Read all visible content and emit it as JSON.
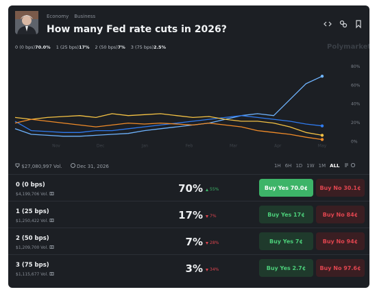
{
  "header": {
    "breadcrumb": [
      "Economy",
      "Business"
    ],
    "title": "How many Fed rate cuts in 2026?"
  },
  "brand": "Polymarket",
  "chart_data": {
    "type": "line",
    "series": [
      {
        "name": "0 (0 bps)",
        "current": "70.0%",
        "color": "#6fb4ff",
        "values": [
          14,
          8,
          7,
          6,
          6,
          7,
          8,
          9,
          12,
          14,
          16,
          18,
          20,
          24,
          28,
          30,
          28,
          45,
          62,
          70
        ]
      },
      {
        "name": "1 (25 bps)",
        "current": "17%",
        "color": "#2f7bf0",
        "values": [
          22,
          12,
          11,
          10,
          10,
          12,
          12,
          14,
          16,
          18,
          20,
          22,
          24,
          26,
          28,
          26,
          24,
          22,
          19,
          17
        ]
      },
      {
        "name": "2 (50 bps)",
        "current": "7%",
        "color": "#f6c344",
        "values": [
          26,
          24,
          26,
          27,
          28,
          26,
          30,
          28,
          29,
          30,
          28,
          26,
          27,
          24,
          22,
          22,
          20,
          16,
          10,
          7
        ]
      },
      {
        "name": "3 (75 bps)",
        "current": "2.5%",
        "color": "#f28c28",
        "values": [
          20,
          24,
          22,
          20,
          18,
          16,
          18,
          20,
          19,
          20,
          19,
          18,
          20,
          18,
          16,
          12,
          10,
          8,
          5,
          2.5
        ]
      }
    ],
    "x_tick_labels": [
      "Nov",
      "Dec",
      "Jan",
      "Feb",
      "Mar",
      "Apr",
      "May"
    ],
    "ylim": [
      0,
      84
    ],
    "yticks": [
      {
        "value": 0,
        "label": "0%"
      },
      {
        "value": 20,
        "label": "20%"
      },
      {
        "value": 40,
        "label": "40%"
      },
      {
        "value": 60,
        "label": "60%"
      },
      {
        "value": 80,
        "label": "80%"
      }
    ],
    "grid": false
  },
  "footer": {
    "volume": "$27,080,997 Vol.",
    "end_date": "Dec 31, 2026",
    "ranges": [
      "1H",
      "6H",
      "1D",
      "1W",
      "1M",
      "ALL"
    ],
    "active_range": "ALL"
  },
  "table": {
    "rows": [
      {
        "name": "0 (0 bps)",
        "volume": "$4,199,706 Vol.",
        "chance": "70%",
        "change": "55%",
        "direction": "up",
        "buy_yes": "Buy Yes 70.0¢",
        "buy_no": "Buy No 30.1¢",
        "highlight": true
      },
      {
        "name": "1 (25 bps)",
        "volume": "$1,250,422 Vol.",
        "chance": "17%",
        "change": "7%",
        "direction": "down",
        "buy_yes": "Buy Yes 17¢",
        "buy_no": "Buy No 84¢",
        "highlight": false
      },
      {
        "name": "2 (50 bps)",
        "volume": "$1,209,700 Vol.",
        "chance": "7%",
        "change": "28%",
        "direction": "down",
        "buy_yes": "Buy Yes 7¢",
        "buy_no": "Buy No 94¢",
        "highlight": false
      },
      {
        "name": "3 (75 bps)",
        "volume": "$1,115,677 Vol.",
        "chance": "3%",
        "change": "34%",
        "direction": "down",
        "buy_yes": "Buy Yes 2.7¢",
        "buy_no": "Buy No 97.6¢",
        "highlight": false
      }
    ]
  }
}
